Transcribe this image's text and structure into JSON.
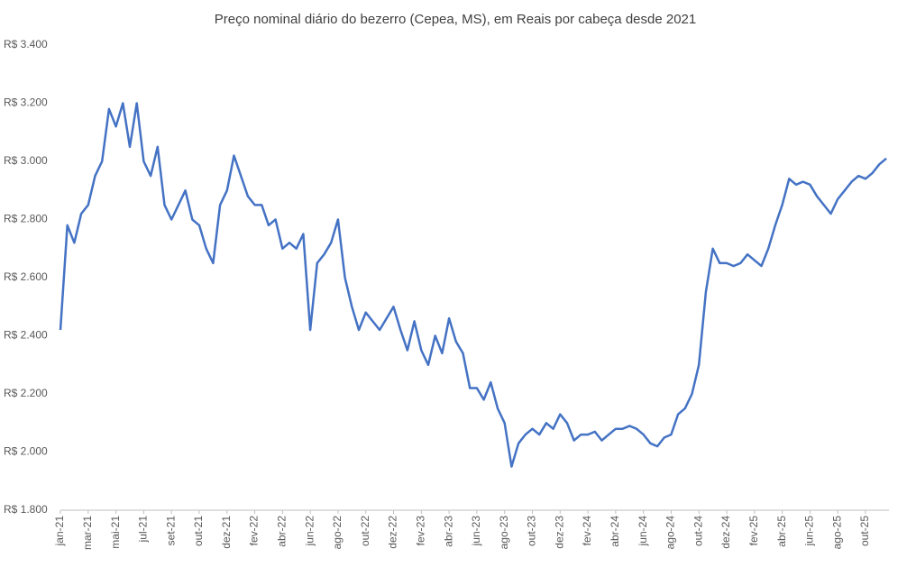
{
  "chart_data": {
    "type": "line",
    "title": "Preço nominal diário do bezerro (Cepea, MS), em Reais por cabeça desde 2021",
    "categories": [
      "jan-21",
      null,
      null,
      null,
      "mar-21",
      null,
      null,
      null,
      "mai-21",
      null,
      null,
      null,
      "jul-21",
      null,
      null,
      null,
      "set-21",
      null,
      null,
      null,
      "out-21",
      null,
      null,
      null,
      "dez-21",
      null,
      null,
      null,
      "fev-22",
      null,
      null,
      null,
      "abr-22",
      null,
      null,
      null,
      "jun-22",
      null,
      null,
      null,
      "ago-22",
      null,
      null,
      null,
      "out-22",
      null,
      null,
      null,
      "dez-22",
      null,
      null,
      null,
      "fev-23",
      null,
      null,
      null,
      "abr-23",
      null,
      null,
      null,
      "jun-23",
      null,
      null,
      null,
      "ago-23",
      null,
      null,
      null,
      "out-23",
      null,
      null,
      null,
      "dez-23",
      null,
      null,
      null,
      "fev-24",
      null,
      null,
      null,
      "abr-24",
      null,
      null,
      null,
      "jun-24",
      null,
      null,
      null,
      "ago-24",
      null,
      null,
      null,
      "out-24",
      null,
      null,
      null,
      "dez-24",
      null,
      null,
      null,
      "fev-25",
      null,
      null,
      null,
      "abr-25",
      null,
      null,
      null,
      "jun-25",
      null,
      null,
      null,
      "ago-25",
      null,
      null,
      null,
      "out-25",
      null,
      null,
      null
    ],
    "series": [
      {
        "name": "Preço",
        "color": "#4472c4",
        "values": [
          2420,
          2780,
          2720,
          2820,
          2850,
          2950,
          3000,
          3180,
          3120,
          3200,
          3050,
          3200,
          3000,
          2950,
          3050,
          2850,
          2800,
          2850,
          2900,
          2800,
          2780,
          2700,
          2650,
          2850,
          2900,
          3020,
          2950,
          2880,
          2850,
          2850,
          2780,
          2800,
          2700,
          2720,
          2700,
          2750,
          2420,
          2650,
          2680,
          2720,
          2800,
          2600,
          2500,
          2420,
          2480,
          2450,
          2420,
          2460,
          2500,
          2420,
          2350,
          2450,
          2350,
          2300,
          2400,
          2340,
          2460,
          2380,
          2340,
          2220,
          2220,
          2180,
          2240,
          2150,
          2100,
          1950,
          2030,
          2060,
          2080,
          2060,
          2100,
          2080,
          2130,
          2100,
          2040,
          2060,
          2060,
          2070,
          2040,
          2060,
          2080,
          2080,
          2090,
          2080,
          2060,
          2030,
          2020,
          2050,
          2060,
          2130,
          2150,
          2200,
          2300,
          2550,
          2700,
          2650,
          2650,
          2640,
          2650,
          2680,
          2660,
          2640,
          2700,
          2780,
          2850,
          2940,
          2920,
          2930,
          2920,
          2880,
          2850,
          2820,
          2870,
          2900,
          2930,
          2950,
          2940,
          2960,
          2990,
          3010
        ]
      }
    ],
    "ylim": [
      1800,
      3400
    ],
    "yticks": [
      {
        "value": 1800,
        "label": "R$ 1.800"
      },
      {
        "value": 2000,
        "label": "R$ 2.000"
      },
      {
        "value": 2200,
        "label": "R$ 2.200"
      },
      {
        "value": 2400,
        "label": "R$ 2.400"
      },
      {
        "value": 2600,
        "label": "R$ 2.600"
      },
      {
        "value": 2800,
        "label": "R$ 2.800"
      },
      {
        "value": 3000,
        "label": "R$ 3.000"
      },
      {
        "value": 3200,
        "label": "R$ 3.200"
      },
      {
        "value": 3400,
        "label": "R$ 3.400"
      }
    ],
    "grid": false
  }
}
